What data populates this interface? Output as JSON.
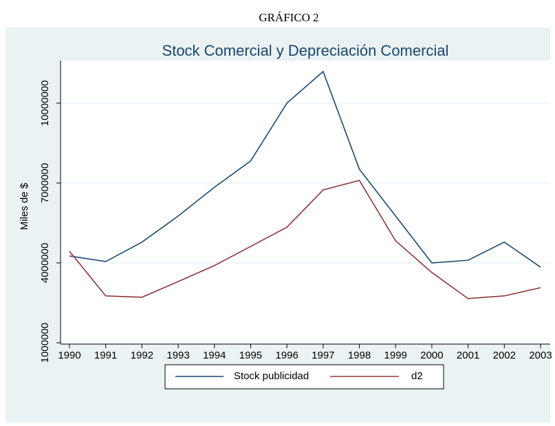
{
  "heading": "GRÁFICO 2",
  "chart_data": {
    "type": "line",
    "title": "Stock Comercial y Depreciación Comercial",
    "y_label": "Miles de $",
    "categories": [
      "1990",
      "1991",
      "1992",
      "1993",
      "1994",
      "1995",
      "1996",
      "1997",
      "1998",
      "1999",
      "2000",
      "2001",
      "2002",
      "2003"
    ],
    "series": [
      {
        "name": "Stock publicidad",
        "color": "#1a476f",
        "values": [
          4260000,
          4050000,
          4780000,
          5760000,
          6840000,
          7830000,
          10000000,
          11190000,
          7520000,
          5760000,
          4000000,
          4100000,
          4780000,
          3840000
        ]
      },
      {
        "name": "d2",
        "color": "#90353b",
        "values": [
          4440000,
          2760000,
          2710000,
          3300000,
          3900000,
          4620000,
          5340000,
          6740000,
          7100000,
          4830000,
          3640000,
          2660000,
          2760000,
          3070000
        ]
      }
    ],
    "ylim": [
      950000,
      11600000
    ],
    "yticks": [
      1000000,
      4000000,
      7000000,
      10000000
    ],
    "grid": true
  }
}
